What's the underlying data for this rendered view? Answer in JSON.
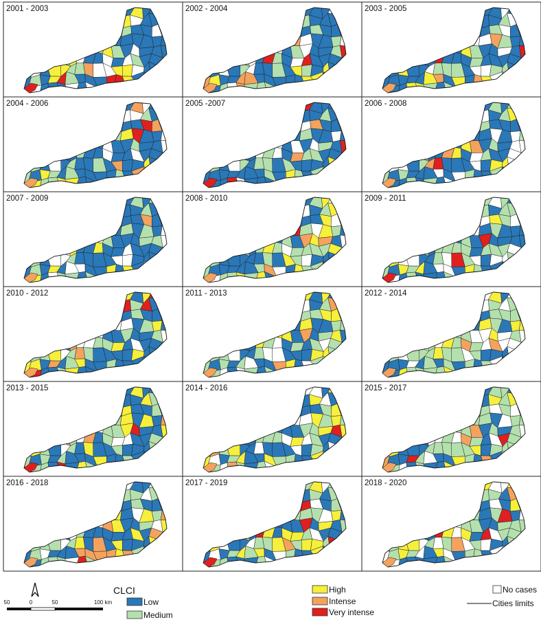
{
  "panels": [
    "2001 - 2003",
    "2002 - 2004",
    "2003 - 2005",
    "2004 - 2006",
    "2005 -2007",
    "2006 - 2008",
    "2007 - 2009",
    "2008 - 2010",
    "2009 - 2011",
    "2010 - 2012",
    "2011 - 2013",
    "2012 - 2014",
    "2013 - 2015",
    "2014 - 2016",
    "2015 - 2017",
    "2016 - 2018",
    "2017 - 2019",
    "2018 - 2020"
  ],
  "legend": {
    "title": "CLCI",
    "items": [
      {
        "label": "Low",
        "color": "#2a78b8"
      },
      {
        "label": "Medium",
        "color": "#b4e0ae"
      },
      {
        "label": "High",
        "color": "#f6ef3c"
      },
      {
        "label": "Intense",
        "color": "#f4a25e"
      },
      {
        "label": "Very intense",
        "color": "#e0201f"
      },
      {
        "label": "No cases",
        "color": "#ffffff"
      }
    ],
    "line_label": "Cities limits"
  },
  "scale_bar": [
    "50",
    "0",
    "50",
    "100 km"
  ]
}
